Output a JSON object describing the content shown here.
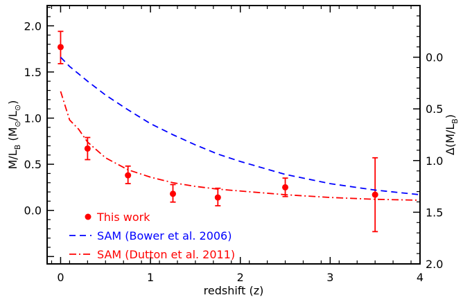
{
  "chart_data": {
    "type": "scatter",
    "xlabel": "redshift (z)",
    "ylabel": "M/L",
    "ylabel_sub": "B",
    "ylabel_units": "(M",
    "ylabel_units_mid": "/L",
    "ylabel_units_end": ")",
    "y2label_main": "Δ(M/L",
    "y2label_sub": "B",
    "y2label_end": ")",
    "xlim": [
      -0.15,
      4.0
    ],
    "ylim": [
      -0.58,
      2.22
    ],
    "y2lim": [
      2.0,
      -0.5
    ],
    "x_ticks": [
      0,
      1,
      2,
      3,
      4
    ],
    "y_ticks": [
      0.0,
      0.5,
      1.0,
      1.5,
      2.0
    ],
    "y_tick_labels": [
      "0.0",
      "0.5",
      "1.0",
      "1.5",
      "2.0"
    ],
    "y2_ticks": [
      0.0,
      0.5,
      1.0,
      1.5,
      2.0
    ],
    "y2_tick_labels": [
      "0.0",
      "0.5",
      "1.0",
      "1.5",
      "2.0"
    ],
    "colors": {
      "this_work": "#ff0000",
      "bower": "#0000ff",
      "dutton": "#ff0000"
    },
    "series": [
      {
        "name": "This work",
        "style": "points-with-errorbars",
        "points": [
          {
            "x": 0.0,
            "y": 1.77,
            "ylo": 1.59,
            "yhi": 1.94
          },
          {
            "x": 0.3,
            "y": 0.67,
            "ylo": 0.55,
            "yhi": 0.79
          },
          {
            "x": 0.75,
            "y": 0.38,
            "ylo": 0.29,
            "yhi": 0.48
          },
          {
            "x": 1.25,
            "y": 0.18,
            "ylo": 0.09,
            "yhi": 0.28
          },
          {
            "x": 1.75,
            "y": 0.14,
            "ylo": 0.05,
            "yhi": 0.24
          },
          {
            "x": 2.5,
            "y": 0.25,
            "ylo": 0.15,
            "yhi": 0.35
          },
          {
            "x": 3.5,
            "y": 0.17,
            "ylo": -0.23,
            "yhi": 0.57
          }
        ]
      },
      {
        "name": "SAM (Bower et al. 2006)",
        "style": "dashed",
        "x": [
          0.0,
          0.1,
          0.2,
          0.3,
          0.5,
          0.75,
          1.0,
          1.25,
          1.5,
          1.75,
          2.0,
          2.5,
          3.0,
          3.5,
          4.0
        ],
        "y": [
          1.66,
          1.56,
          1.48,
          1.4,
          1.25,
          1.09,
          0.94,
          0.82,
          0.71,
          0.61,
          0.53,
          0.39,
          0.29,
          0.22,
          0.17
        ]
      },
      {
        "name": "SAM (Dutton et al. 2011)",
        "style": "dash-dot",
        "x": [
          0.0,
          0.1,
          0.2,
          0.3,
          0.5,
          0.75,
          1.0,
          1.25,
          1.5,
          1.75,
          2.0,
          2.5,
          3.0,
          3.5,
          4.0
        ],
        "y": [
          1.29,
          0.98,
          0.88,
          0.74,
          0.57,
          0.44,
          0.36,
          0.3,
          0.26,
          0.23,
          0.21,
          0.17,
          0.14,
          0.12,
          0.11
        ]
      }
    ],
    "legend_position": "bottom-left"
  }
}
